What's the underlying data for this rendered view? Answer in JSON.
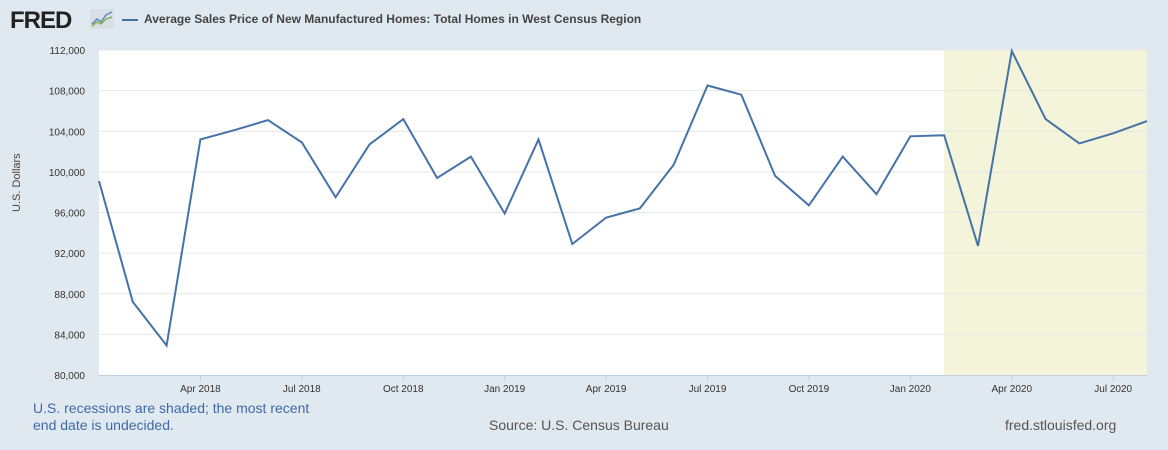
{
  "header": {
    "logo": "FRED",
    "logo_icon": "chart-line-icon",
    "title": "Average Sales Price of New Manufactured Homes: Total Homes in West Census Region",
    "series_color": "#4572a7"
  },
  "footer": {
    "recession_note": "U.S. recessions are shaded; the most recent end date is undecided.",
    "source": "Source: U.S. Census Bureau",
    "site": "fred.stlouisfed.org"
  },
  "colors": {
    "background": "#e1e9f0",
    "plot_background": "#ffffff",
    "recession_shade": "#f4f4da",
    "gridline": "#e6e6e6",
    "line": "#4572a7"
  },
  "chart_data": {
    "type": "line",
    "title": "Average Sales Price of New Manufactured Homes: Total Homes in West Census Region",
    "xlabel": "",
    "ylabel": "U.S. Dollars",
    "ylim": [
      80000,
      112000
    ],
    "yticks": [
      80000,
      84000,
      88000,
      92000,
      96000,
      100000,
      104000,
      108000,
      112000
    ],
    "ytick_labels": [
      "80,000",
      "84,000",
      "88,000",
      "92,000",
      "96,000",
      "100,000",
      "104,000",
      "108,000",
      "112,000"
    ],
    "xtick_labels": [
      "Apr 2018",
      "Jul 2018",
      "Oct 2018",
      "Jan 2019",
      "Apr 2019",
      "Jul 2019",
      "Oct 2019",
      "Jan 2020",
      "Apr 2020",
      "Jul 2020"
    ],
    "grid": true,
    "legend_position": "top",
    "recession_shading": {
      "start": "Feb 2020",
      "end": "Aug 2020"
    },
    "x": [
      "Jan 2018",
      "Feb 2018",
      "Mar 2018",
      "Apr 2018",
      "May 2018",
      "Jun 2018",
      "Jul 2018",
      "Aug 2018",
      "Sep 2018",
      "Oct 2018",
      "Nov 2018",
      "Dec 2018",
      "Jan 2019",
      "Feb 2019",
      "Mar 2019",
      "Apr 2019",
      "May 2019",
      "Jun 2019",
      "Jul 2019",
      "Aug 2019",
      "Sep 2019",
      "Oct 2019",
      "Nov 2019",
      "Dec 2019",
      "Jan 2020",
      "Feb 2020",
      "Mar 2020",
      "Apr 2020",
      "May 2020",
      "Jun 2020",
      "Jul 2020",
      "Aug 2020"
    ],
    "series": [
      {
        "name": "Average Sales Price of New Manufactured Homes: Total Homes in West Census Region",
        "values": [
          99100,
          87200,
          82900,
          103200,
          104100,
          105100,
          102900,
          97500,
          102700,
          105200,
          99400,
          101500,
          95900,
          103200,
          92900,
          95500,
          96400,
          100700,
          108500,
          107600,
          99600,
          96700,
          101500,
          97800,
          103500,
          103600,
          92700,
          111900,
          105200,
          102800,
          103800,
          105000
        ]
      }
    ]
  }
}
